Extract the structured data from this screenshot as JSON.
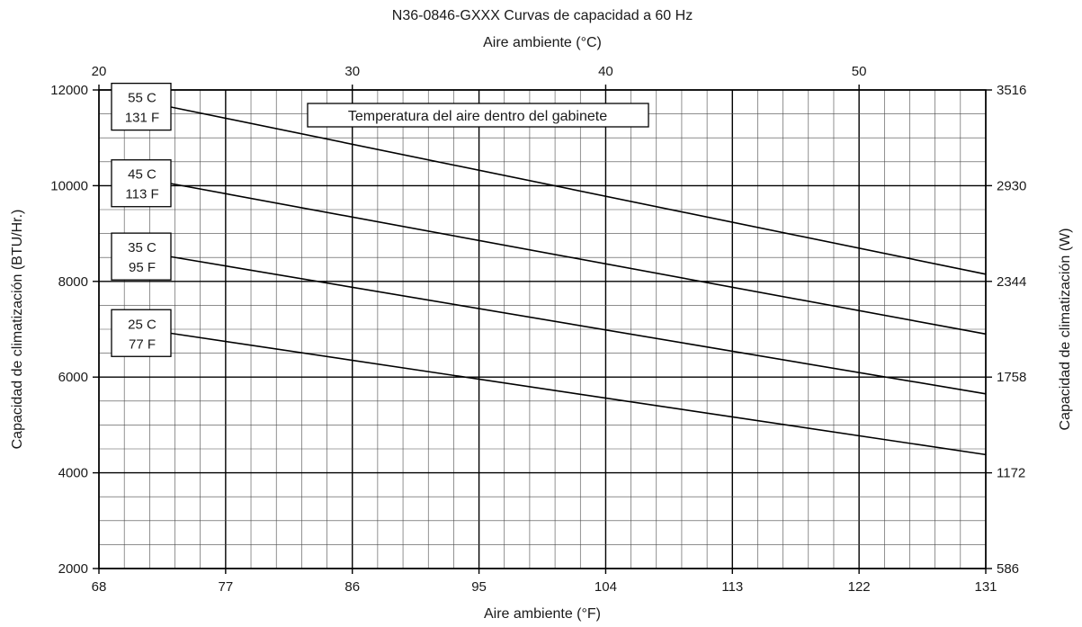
{
  "chart_data": {
    "type": "line",
    "title": "N36-0846-GXXX Curvas de capacidad a 60 Hz",
    "top_axis_label": "Aire ambiente (°C)",
    "top_ticks": [
      "20",
      "30",
      "40",
      "50"
    ],
    "xlabel": "Aire ambiente (°F)",
    "x_ticks": [
      "68",
      "77",
      "86",
      "95",
      "104",
      "113",
      "122",
      "131"
    ],
    "xlim": [
      68,
      131
    ],
    "ylabel": "Capacidad de climatización (BTU/Hr.)",
    "y_ticks": [
      "2000",
      "4000",
      "6000",
      "8000",
      "10000",
      "12000"
    ],
    "ylim": [
      2000,
      12000
    ],
    "right_axis_label": "Capacidad de climatización (W)",
    "right_ticks": [
      "586",
      "1172",
      "1758",
      "2344",
      "2930",
      "3516"
    ],
    "grid": true,
    "legend_title": "Temperatura del aire dentro del gabinete",
    "series": [
      {
        "name_c": "55 C",
        "name_f": "131 F",
        "x": [
          73,
          131
        ],
        "values": [
          11650,
          8150
        ]
      },
      {
        "name_c": "45 C",
        "name_f": "113 F",
        "x": [
          73,
          131
        ],
        "values": [
          10050,
          6900
        ]
      },
      {
        "name_c": "35 C",
        "name_f": "95 F",
        "x": [
          73,
          131
        ],
        "values": [
          8520,
          5650
        ]
      },
      {
        "name_c": "25 C",
        "name_f": "77 F",
        "x": [
          73,
          131
        ],
        "values": [
          6920,
          4380
        ]
      }
    ]
  }
}
